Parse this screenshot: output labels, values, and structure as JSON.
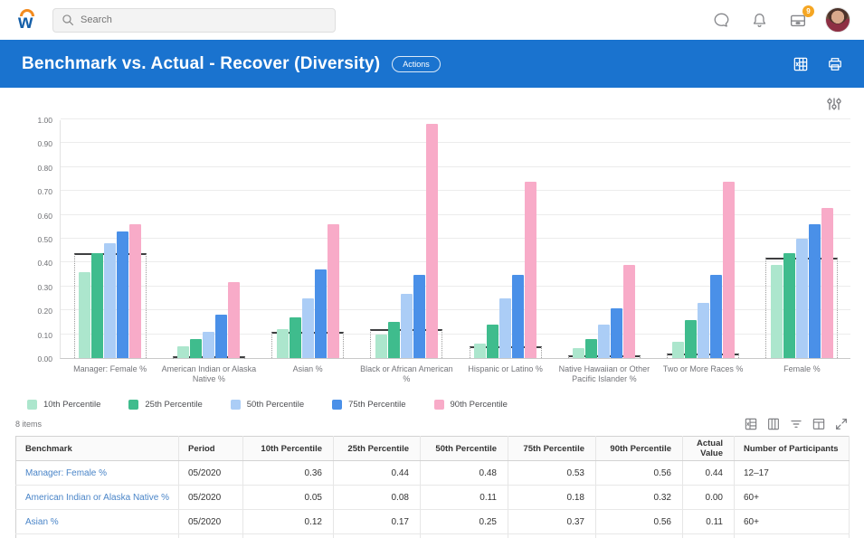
{
  "topbar": {
    "search_placeholder": "Search",
    "inbox_badge": "9",
    "icons": {
      "search": "magnifier",
      "chat": "speech-bubble",
      "notifications": "bell",
      "inbox": "tray",
      "profile": "user-photo"
    }
  },
  "header": {
    "title": "Benchmark vs. Actual - Recover (Diversity)",
    "actions_label": "Actions",
    "accent_color": "#1a73cf",
    "icons": {
      "export": "excel-workbook",
      "print": "printer"
    }
  },
  "chart_data": {
    "type": "bar",
    "title": "",
    "xlabel": "",
    "ylabel": "",
    "ylim": [
      0,
      1.0
    ],
    "ytick_step": 0.1,
    "grid": true,
    "legend_position": "bottom",
    "categories": [
      "Manager: Female %",
      "American Indian or Alaska Native %",
      "Asian %",
      "Black or African American %",
      "Hispanic or Latino %",
      "Native Hawaiian or Other Pacific Islander %",
      "Two or More Races %",
      "Female %"
    ],
    "series": [
      {
        "name": "10th Percentile",
        "color": "#ace6cd",
        "values": [
          0.36,
          0.05,
          0.12,
          0.1,
          0.06,
          0.04,
          0.07,
          0.39
        ]
      },
      {
        "name": "25th Percentile",
        "color": "#3fbc8d",
        "values": [
          0.44,
          0.08,
          0.17,
          0.15,
          0.14,
          0.08,
          0.16,
          0.44
        ]
      },
      {
        "name": "50th Percentile",
        "color": "#abcdf6",
        "values": [
          0.48,
          0.11,
          0.25,
          0.27,
          0.25,
          0.14,
          0.23,
          0.5
        ]
      },
      {
        "name": "75th Percentile",
        "color": "#4a90e8",
        "values": [
          0.53,
          0.18,
          0.37,
          0.35,
          0.35,
          0.21,
          0.35,
          0.56
        ]
      },
      {
        "name": "90th Percentile",
        "color": "#f8abc8",
        "values": [
          0.56,
          0.32,
          0.56,
          0.98,
          0.74,
          0.39,
          0.74,
          0.63
        ]
      }
    ],
    "actual_value_markers": [
      0.44,
      0.0,
      0.11,
      0.12,
      0.05,
      0.01,
      0.02,
      0.42
    ],
    "marker_color": "#3e3f41"
  },
  "table": {
    "items_label": "8 items",
    "toolbar_icons": [
      "export-to-excel",
      "table-columns",
      "filter",
      "freeze-columns",
      "expand-fullscreen"
    ],
    "columns": [
      "Benchmark",
      "Period",
      "10th Percentile",
      "25th Percentile",
      "50th Percentile",
      "75th Percentile",
      "90th Percentile",
      "Actual Value",
      "Number of Participants"
    ],
    "rows": [
      [
        "Manager: Female %",
        "05/2020",
        "0.36",
        "0.44",
        "0.48",
        "0.53",
        "0.56",
        "0.44",
        "12–17"
      ],
      [
        "American Indian or Alaska Native %",
        "05/2020",
        "0.05",
        "0.08",
        "0.11",
        "0.18",
        "0.32",
        "0.00",
        "60+"
      ],
      [
        "Asian %",
        "05/2020",
        "0.12",
        "0.17",
        "0.25",
        "0.37",
        "0.56",
        "0.11",
        "60+"
      ]
    ],
    "link_color": "#4a85c8"
  }
}
